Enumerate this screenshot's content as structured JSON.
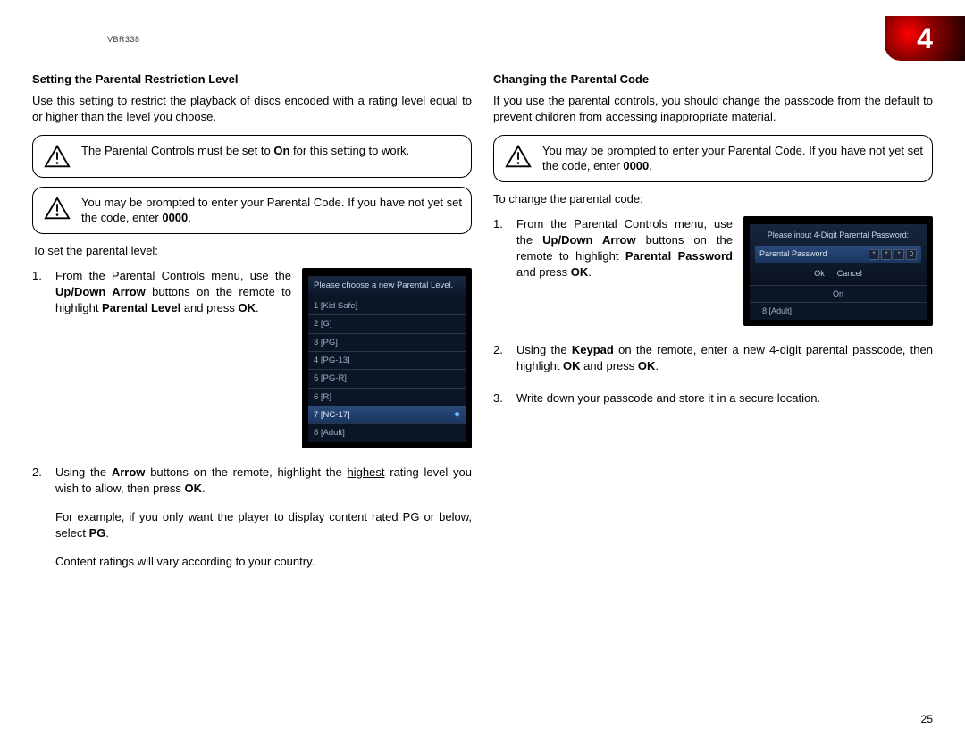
{
  "header": {
    "model": "VBR338",
    "chapter": "4"
  },
  "page_number": "25",
  "left": {
    "title": "Setting the Parental Restriction Level",
    "intro": "Use this setting to restrict the playback of discs encoded with a rating level equal to or higher than the level you choose.",
    "warn1_a": "The Parental Controls must be set to ",
    "warn1_b": "On",
    "warn1_c": " for this setting to work.",
    "warn2_a": "You may be prompted to enter your Parental Code. If you have not yet set the code, enter ",
    "warn2_b": "0000",
    "warn2_c": ".",
    "lead": "To set the parental level:",
    "step1_a": "From the Parental Controls menu, use the ",
    "step1_b": "Up/Down Arrow",
    "step1_c": " buttons on the remote to highlight ",
    "step1_d": "Parental Level",
    "step1_e": " and press ",
    "step1_f": "OK",
    "step1_g": ".",
    "step2_a": "Using the ",
    "step2_b": "Arrow",
    "step2_c": " buttons on the remote, highlight the ",
    "step2_d": "highest",
    "step2_e": " rating level you wish to allow, then press ",
    "step2_f": "OK",
    "step2_g": ".",
    "step2_sub1_a": "For example, if you only want the player to display content rated PG or below, select ",
    "step2_sub1_b": "PG",
    "step2_sub1_c": ".",
    "step2_sub2": "Content ratings will vary according to your country.",
    "ss": {
      "title": "Please choose a new Parental Level.",
      "rows": [
        "1 [Kid Safe]",
        "2 [G]",
        "3 [PG]",
        "4 [PG-13]",
        "5 [PG-R]",
        "6 [R]",
        "7 [NC-17]",
        "8 [Adult]"
      ],
      "highlight_index": 6
    }
  },
  "right": {
    "title": "Changing the Parental Code",
    "intro": "If you use the parental controls, you should change the passcode from the default to prevent children from accessing inappropriate material.",
    "warn_a": "You may be prompted to enter your Parental Code. If you have not yet set the code, enter ",
    "warn_b": "0000",
    "warn_c": ".",
    "lead": "To change the parental code:",
    "step1_a": "From the Parental Controls menu, use the ",
    "step1_b": "Up/Down Arrow",
    "step1_c": " buttons on the remote to highlight ",
    "step1_d": "Parental Password",
    "step1_e": " and press ",
    "step1_f": "OK",
    "step1_g": ".",
    "step2_a": "Using the ",
    "step2_b": "Keypad",
    "step2_c": " on the remote, enter a new 4-digit parental passcode, then highlight ",
    "step2_d": "OK",
    "step2_e": " and press ",
    "step2_f": "OK",
    "step2_g": ".",
    "step3": "Write down your passcode and store it in a secure location.",
    "ss": {
      "title": "Please input 4-Digit Parental Password:",
      "label": "Parental Password",
      "boxes": [
        "*",
        "*",
        "*",
        "0"
      ],
      "ok": "Ok",
      "cancel": "Cancel",
      "extra1": "On",
      "extra2": "8 [Adult]"
    }
  }
}
